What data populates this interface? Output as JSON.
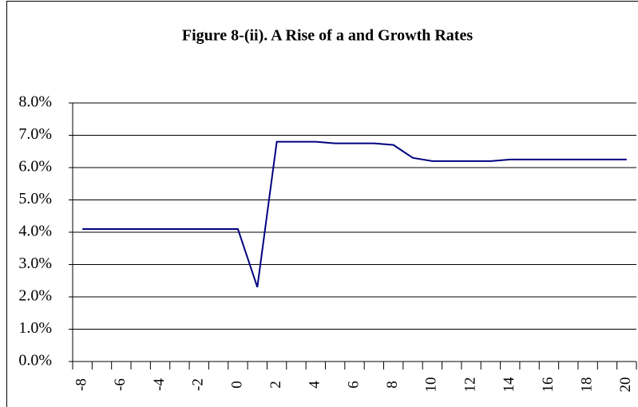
{
  "chart_data": {
    "type": "line",
    "title": "Figure 8-(ii). A Rise of a  and  Growth Rates",
    "categories": [
      "-8",
      null,
      "-6",
      null,
      "-4",
      null,
      "-2",
      null,
      "0",
      null,
      "2",
      null,
      "4",
      null,
      "6",
      null,
      "8",
      null,
      "10",
      null,
      "12",
      null,
      "14",
      null,
      "16",
      null,
      "18",
      null,
      "20"
    ],
    "values": [
      4.1,
      4.1,
      4.1,
      4.1,
      4.1,
      4.1,
      4.1,
      4.1,
      4.1,
      2.3,
      6.8,
      6.8,
      6.8,
      6.75,
      6.75,
      6.75,
      6.7,
      6.3,
      6.2,
      6.2,
      6.2,
      6.2,
      6.25,
      6.25,
      6.25,
      6.25,
      6.25,
      6.25,
      6.25
    ],
    "color": "#000080",
    "ylim": [
      0,
      8
    ],
    "yticks": [
      {
        "value": 0,
        "label": "0.0%"
      },
      {
        "value": 1,
        "label": "1.0%"
      },
      {
        "value": 2,
        "label": "2.0%"
      },
      {
        "value": 3,
        "label": "3.0%"
      },
      {
        "value": 4,
        "label": "4.0%"
      },
      {
        "value": 5,
        "label": "5.0%"
      },
      {
        "value": 6,
        "label": "6.0%"
      },
      {
        "value": 7,
        "label": "7.0%"
      },
      {
        "value": 8,
        "label": "8.0%"
      }
    ],
    "grid": true
  }
}
